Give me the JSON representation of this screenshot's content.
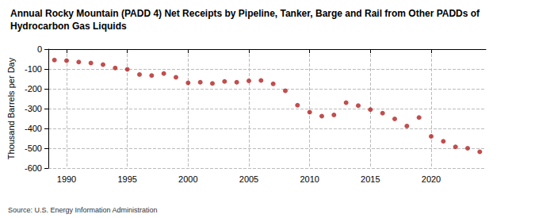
{
  "chart_data": {
    "type": "scatter",
    "title": "Annual Rocky Mountain (PADD 4) Net Receipts by Pipeline, Tanker, Barge and Rail from Other PADDs of Hydrocarbon Gas Liquids",
    "y_label": "Thousand Barrels per Day",
    "source": "Source: U.S. Energy Information Administration",
    "x": [
      1989,
      1990,
      1991,
      1992,
      1993,
      1994,
      1995,
      1996,
      1997,
      1998,
      1999,
      2000,
      2001,
      2002,
      2003,
      2004,
      2005,
      2006,
      2007,
      2008,
      2009,
      2010,
      2011,
      2012,
      2013,
      2014,
      2015,
      2016,
      2017,
      2018,
      2019,
      2020,
      2021,
      2022,
      2023,
      2024
    ],
    "values": [
      -55,
      -58,
      -65,
      -70,
      -78,
      -95,
      -102,
      -128,
      -133,
      -123,
      -142,
      -170,
      -167,
      -173,
      -163,
      -167,
      -160,
      -158,
      -175,
      -210,
      -283,
      -318,
      -338,
      -332,
      -270,
      -285,
      -305,
      -323,
      -352,
      -388,
      -345,
      -440,
      -465,
      -493,
      -500,
      -518
    ],
    "color": "#b22222",
    "marker": "circle",
    "xlim": [
      1988.5,
      2024.5
    ],
    "xticks": [
      1990,
      1995,
      2000,
      2005,
      2010,
      2015,
      2020
    ],
    "ylim": [
      -600,
      0
    ],
    "yticks": [
      -600,
      -500,
      -400,
      -300,
      -200,
      -100,
      0
    ],
    "grid": true
  }
}
